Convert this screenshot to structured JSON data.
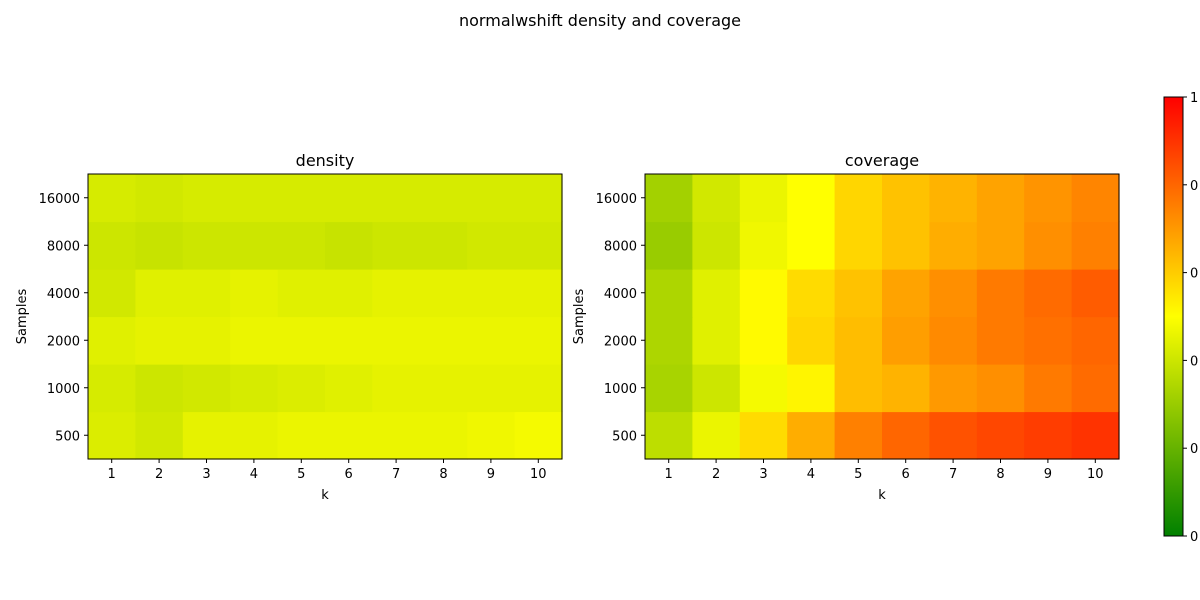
{
  "suptitle": "normalwshift density and coverage",
  "colors": {
    "low": "#008000",
    "mid": "#ffff00",
    "high": "#ff0000"
  },
  "chart_data": [
    {
      "type": "heatmap",
      "title": "density",
      "xlabel": "k",
      "ylabel": "Samples",
      "x": [
        "1",
        "2",
        "3",
        "4",
        "5",
        "6",
        "7",
        "8",
        "9",
        "10"
      ],
      "y": [
        "500",
        "1000",
        "2000",
        "4000",
        "8000",
        "16000"
      ],
      "values": [
        [
          0.43,
          0.41,
          0.45,
          0.45,
          0.46,
          0.46,
          0.46,
          0.46,
          0.47,
          0.48
        ],
        [
          0.42,
          0.4,
          0.41,
          0.42,
          0.43,
          0.44,
          0.45,
          0.45,
          0.45,
          0.45
        ],
        [
          0.44,
          0.45,
          0.45,
          0.46,
          0.46,
          0.46,
          0.46,
          0.46,
          0.46,
          0.46
        ],
        [
          0.41,
          0.44,
          0.44,
          0.45,
          0.44,
          0.44,
          0.45,
          0.45,
          0.45,
          0.45
        ],
        [
          0.4,
          0.39,
          0.4,
          0.4,
          0.4,
          0.39,
          0.4,
          0.4,
          0.41,
          0.41
        ],
        [
          0.42,
          0.41,
          0.42,
          0.42,
          0.42,
          0.42,
          0.42,
          0.42,
          0.42,
          0.42
        ]
      ]
    },
    {
      "type": "heatmap",
      "title": "coverage",
      "xlabel": "k",
      "ylabel": "Samples",
      "x": [
        "1",
        "2",
        "3",
        "4",
        "5",
        "6",
        "7",
        "8",
        "9",
        "10"
      ],
      "y": [
        "500",
        "1000",
        "2000",
        "4000",
        "8000",
        "16000"
      ],
      "values": [
        [
          0.37,
          0.46,
          0.57,
          0.66,
          0.75,
          0.8,
          0.84,
          0.86,
          0.88,
          0.9
        ],
        [
          0.33,
          0.4,
          0.48,
          0.52,
          0.63,
          0.65,
          0.7,
          0.72,
          0.76,
          0.79
        ],
        [
          0.34,
          0.44,
          0.51,
          0.58,
          0.63,
          0.69,
          0.73,
          0.76,
          0.78,
          0.8
        ],
        [
          0.34,
          0.44,
          0.51,
          0.57,
          0.62,
          0.68,
          0.72,
          0.76,
          0.79,
          0.82
        ],
        [
          0.3,
          0.4,
          0.47,
          0.5,
          0.58,
          0.62,
          0.66,
          0.68,
          0.72,
          0.75
        ],
        [
          0.32,
          0.41,
          0.46,
          0.5,
          0.58,
          0.62,
          0.65,
          0.68,
          0.71,
          0.74
        ]
      ]
    }
  ],
  "colorbar": {
    "vmin": 0,
    "vmax": 1,
    "tick_labels": [
      "0",
      "0",
      "0",
      "0",
      "0",
      "1"
    ]
  }
}
